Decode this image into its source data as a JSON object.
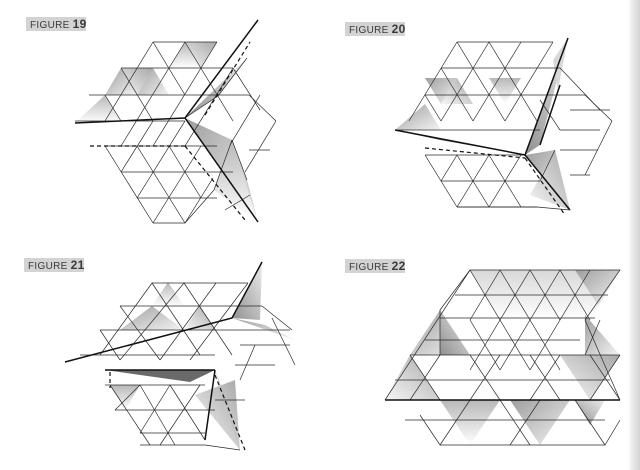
{
  "figures": [
    {
      "word": "FIGURE",
      "number": "19"
    },
    {
      "word": "FIGURE",
      "number": "20"
    },
    {
      "word": "FIGURE",
      "number": "21"
    },
    {
      "word": "FIGURE",
      "number": "22"
    }
  ],
  "colors": {
    "label_background": "#d3d3d3",
    "line": "#2a2a2a",
    "shade_dark": "#9e9e9e",
    "shade_light": "#f2f2f2"
  }
}
